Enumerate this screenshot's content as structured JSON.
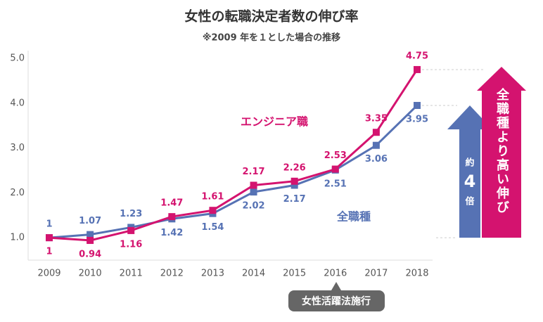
{
  "chart_data": {
    "type": "line",
    "title": "女性の転職決定者数の伸び率",
    "subtitle": "※2009 年を１とした場合の推移",
    "categories": [
      "2009",
      "2010",
      "2011",
      "2012",
      "2013",
      "2014",
      "2015",
      "2016",
      "2017",
      "2018"
    ],
    "series": [
      {
        "name": "エンジニア職",
        "color": "#d4136f",
        "values": [
          1,
          0.94,
          1.16,
          1.47,
          1.61,
          2.17,
          2.26,
          2.53,
          3.35,
          4.75
        ]
      },
      {
        "name": "全職種",
        "color": "#5672b4",
        "values": [
          1,
          1.07,
          1.23,
          1.42,
          1.54,
          2.02,
          2.17,
          2.51,
          3.06,
          3.95
        ]
      }
    ],
    "ylim": [
      0.5,
      5.0
    ],
    "yticks": [
      {
        "value": 1,
        "label": "1.0"
      },
      {
        "value": 2,
        "label": "2.0"
      },
      {
        "value": 3,
        "label": "3.0"
      },
      {
        "value": 4,
        "label": "4.0"
      },
      {
        "value": 5,
        "label": "5.0"
      }
    ],
    "grid": false,
    "event_label": "女性活躍法施行",
    "growth_label": "全職種より高い伸び",
    "ratio_prefix": "約",
    "ratio": 4,
    "ratio_suffix": "倍"
  }
}
